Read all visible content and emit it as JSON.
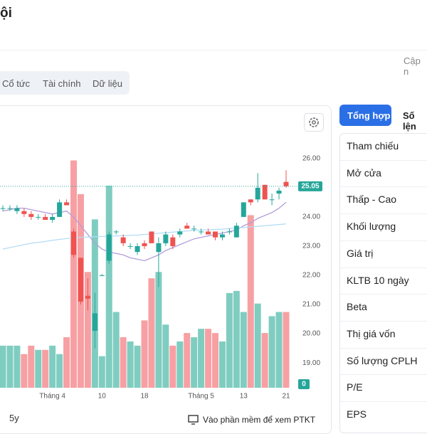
{
  "header": {
    "title": "ội",
    "updated": "Cập n"
  },
  "tabs": [
    "Cổ tức",
    "Tài chính",
    "Dữ liệu"
  ],
  "chart_data": {
    "type": "candlestick",
    "categories": [
      null,
      null,
      null,
      null,
      null,
      null,
      null,
      "Tháng 4",
      null,
      null,
      null,
      null,
      null,
      null,
      "10",
      null,
      null,
      null,
      null,
      null,
      "18",
      null,
      null,
      null,
      null,
      null,
      null,
      null,
      "Tháng 5",
      null,
      null,
      null,
      null,
      null,
      "13",
      null,
      null,
      null,
      null,
      null,
      "21"
    ],
    "open": [
      24.3,
      24.3,
      24.2,
      24.2,
      24.1,
      24.0,
      24.0,
      23.9,
      24.0,
      24.5,
      23.5,
      22.6,
      21.3,
      20.1,
      22.0,
      22.5,
      23.5,
      23.3,
      23.0,
      22.8,
      23.1,
      23.5,
      22.8,
      23.1,
      23.3,
      23.4,
      23.7,
      23.6,
      23.5,
      23.5,
      23.5,
      23.3,
      23.5,
      23.3,
      24.0,
      24.6,
      24.6,
      25.1,
      24.6,
      24.8,
      25.2
    ],
    "high": [
      24.4,
      24.4,
      24.4,
      24.3,
      24.2,
      24.1,
      24.1,
      24.1,
      24.6,
      24.6,
      23.6,
      22.6,
      21.9,
      21.4,
      22.05,
      23.5,
      23.55,
      23.4,
      23.1,
      23.1,
      23.2,
      23.5,
      23.3,
      23.5,
      23.4,
      23.6,
      23.8,
      23.7,
      23.6,
      23.6,
      23.5,
      23.5,
      23.6,
      23.8,
      24.5,
      24.6,
      25.5,
      25.1,
      24.8,
      25.0,
      25.6
    ],
    "low": [
      24.2,
      24.2,
      24.1,
      24.0,
      23.9,
      23.9,
      23.9,
      23.8,
      24.0,
      24.4,
      22.6,
      21.0,
      20.8,
      19.5,
      22.0,
      22.4,
      23.4,
      23.0,
      22.9,
      22.7,
      22.9,
      23.1,
      21.6,
      23.0,
      22.9,
      23.3,
      23.6,
      23.5,
      23.4,
      23.4,
      23.2,
      23.2,
      23.4,
      23.3,
      24.0,
      24.4,
      24.5,
      24.6,
      24.4,
      24.6,
      25.0
    ],
    "close": [
      24.3,
      24.3,
      24.3,
      24.1,
      24.0,
      24.0,
      23.9,
      24.0,
      24.5,
      24.4,
      22.7,
      21.1,
      21.2,
      20.7,
      22.0,
      23.4,
      23.5,
      23.1,
      23.0,
      23.0,
      23.0,
      23.1,
      23.1,
      23.4,
      23.0,
      23.5,
      23.6,
      23.6,
      23.5,
      23.4,
      23.3,
      23.4,
      23.5,
      23.7,
      24.5,
      24.5,
      25.0,
      24.6,
      24.6,
      24.9,
      25.05
    ],
    "volume": [
      20,
      20,
      20,
      16,
      20,
      18,
      18,
      20,
      16,
      24,
      108,
      92,
      55,
      80,
      15,
      96,
      36,
      24,
      22,
      20,
      32,
      52,
      55,
      30,
      20,
      22,
      26,
      24,
      28,
      28,
      26,
      22,
      45,
      46,
      36,
      82,
      40,
      26,
      34,
      36,
      36
    ],
    "volume_lim": [
      0,
      120
    ],
    "up_color": "#26a69a",
    "down_color": "#ef5350",
    "up_volume_color": "#7fcdc0",
    "down_volume_color": "#f7a0a3",
    "lines": [
      {
        "color": "#b39ddb",
        "values": [
          24.2,
          24.25,
          24.3,
          24.3,
          24.25,
          24.2,
          24.15,
          24.1,
          24.15,
          24.2,
          24.0,
          23.7,
          23.4,
          23.1,
          22.9,
          22.8,
          22.75,
          22.7,
          22.6,
          22.55,
          22.5,
          22.6,
          22.7,
          22.85,
          22.95,
          23.05,
          23.15,
          23.25,
          23.3,
          23.35,
          23.4,
          23.45,
          23.5,
          23.55,
          23.7,
          23.8,
          23.95,
          24.05,
          24.15,
          24.3,
          24.5
        ]
      },
      {
        "color": "#b3dcf5",
        "values": [
          22.9,
          22.95,
          23.0,
          23.05,
          23.1,
          23.13,
          23.16,
          23.2,
          23.23,
          23.26,
          23.28,
          23.3,
          23.31,
          23.32,
          23.33,
          23.34,
          23.35,
          23.36,
          23.37,
          23.38,
          23.4,
          23.42,
          23.44,
          23.46,
          23.48,
          23.5,
          23.52,
          23.54,
          23.55,
          23.56,
          23.57,
          23.58,
          23.6,
          23.62,
          23.64,
          23.66,
          23.68,
          23.7,
          23.72,
          23.74,
          23.76
        ]
      }
    ],
    "last_price": 25.05,
    "last_volume": 0,
    "ylim": [
      18.15,
      26.8
    ],
    "yticks": [
      {
        "value": 19,
        "label": "19.00"
      },
      {
        "value": 20,
        "label": "20.00"
      },
      {
        "value": 21,
        "label": "21.00"
      },
      {
        "value": 22,
        "label": "22.00"
      },
      {
        "value": 23,
        "label": "23.00"
      },
      {
        "value": 24,
        "label": "24.00"
      },
      {
        "value": 25,
        "label": "25.00"
      },
      {
        "value": 26,
        "label": "26.00"
      }
    ],
    "range": "5y",
    "link": "Vào phần mềm để xem PTKT"
  },
  "side_panel": {
    "tabs": [
      "Tổng hợp",
      "Số lện"
    ],
    "rows": [
      "Tham chiếu",
      "Mở cửa",
      "Thấp - Cao",
      "Khối lượng",
      "Giá trị",
      "KLTB 10 ngày",
      "Beta",
      "Thị giá vốn",
      "Số lượng CPLH",
      "P/E",
      "EPS"
    ]
  }
}
